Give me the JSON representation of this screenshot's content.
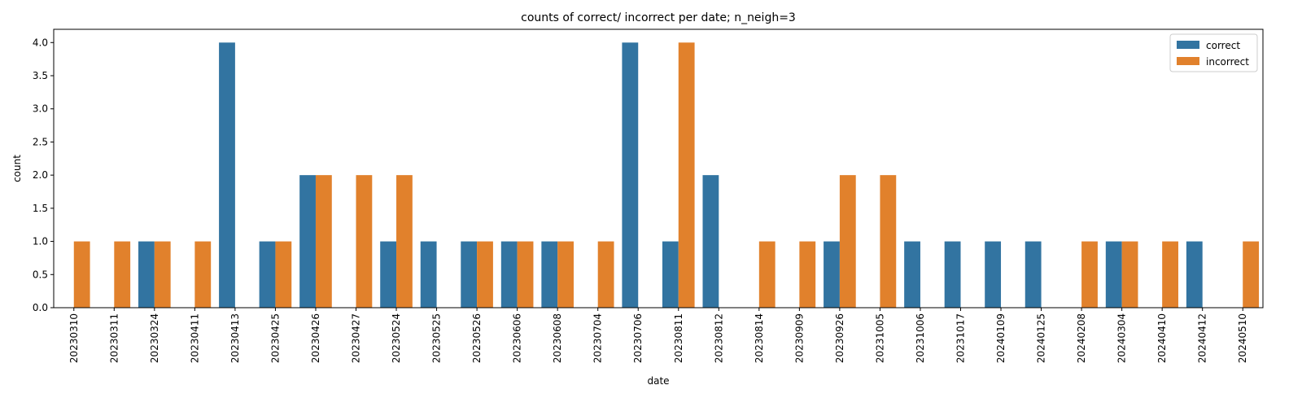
{
  "chart_data": {
    "type": "bar",
    "title": "counts of correct/ incorrect per date; n_neigh=3",
    "xlabel": "date",
    "ylabel": "count",
    "ylim": [
      0,
      4.2
    ],
    "yticks": [
      "0.0",
      "0.5",
      "1.0",
      "1.5",
      "2.0",
      "2.5",
      "3.0",
      "3.5",
      "4.0"
    ],
    "grid": false,
    "legend_position": "top-right",
    "categories": [
      "20230310",
      "20230311",
      "20230324",
      "20230411",
      "20230413",
      "20230425",
      "20230426",
      "20230427",
      "20230524",
      "20230525",
      "20230526",
      "20230606",
      "20230608",
      "20230704",
      "20230706",
      "20230811",
      "20230812",
      "20230814",
      "20230909",
      "20230926",
      "20231005",
      "20231006",
      "20231017",
      "20240109",
      "20240125",
      "20240208",
      "20240304",
      "20240410",
      "20240412",
      "20240510"
    ],
    "series": [
      {
        "name": "correct",
        "color": "#3274a1",
        "values": [
          0,
          0,
          1,
          0,
          4,
          1,
          2,
          0,
          1,
          1,
          1,
          1,
          1,
          0,
          4,
          1,
          2,
          0,
          0,
          1,
          0,
          1,
          1,
          1,
          1,
          0,
          1,
          0,
          1,
          0
        ]
      },
      {
        "name": "incorrect",
        "color": "#e1812c",
        "values": [
          1,
          1,
          1,
          1,
          0,
          1,
          2,
          2,
          2,
          0,
          1,
          1,
          1,
          1,
          0,
          4,
          0,
          1,
          1,
          2,
          2,
          0,
          0,
          0,
          0,
          1,
          1,
          1,
          0,
          1
        ]
      }
    ]
  }
}
